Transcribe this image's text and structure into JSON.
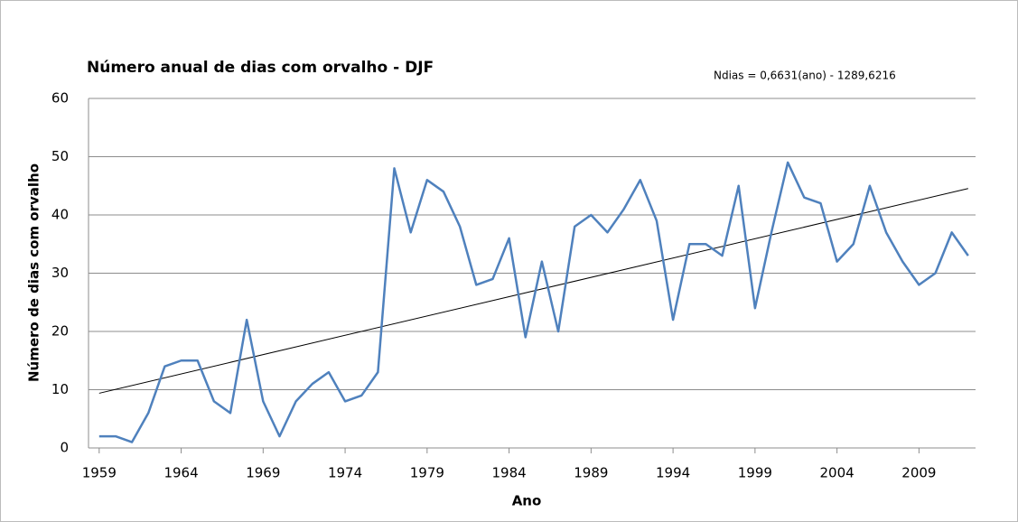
{
  "chart_data": {
    "type": "line",
    "title": "Número anual de dias com orvalho - DJF",
    "x_label": "Ano",
    "y_label": "Número de dias com orvalho",
    "x": [
      1959,
      1960,
      1961,
      1962,
      1963,
      1964,
      1965,
      1966,
      1967,
      1968,
      1969,
      1970,
      1971,
      1972,
      1973,
      1974,
      1975,
      1976,
      1977,
      1978,
      1979,
      1980,
      1981,
      1982,
      1983,
      1984,
      1985,
      1986,
      1987,
      1988,
      1989,
      1990,
      1991,
      1992,
      1993,
      1994,
      1995,
      1996,
      1997,
      1998,
      1999,
      2000,
      2001,
      2002,
      2003,
      2004,
      2005,
      2006,
      2007,
      2008,
      2009,
      2010,
      2011,
      2012
    ],
    "series": [
      {
        "color": "#4f81bd",
        "values": [
          2,
          2,
          1,
          6,
          14,
          15,
          15,
          8,
          6,
          22,
          8,
          2,
          8,
          11,
          13,
          8,
          9,
          13,
          48,
          37,
          46,
          44,
          38,
          28,
          29,
          36,
          19,
          32,
          20,
          38,
          40,
          37,
          41,
          46,
          39,
          22,
          35,
          35,
          33,
          45,
          24,
          37,
          49,
          43,
          42,
          32,
          35,
          45,
          37,
          32,
          28,
          30,
          37,
          33
        ]
      }
    ],
    "trendline": {
      "label": "Ndias = 0,6631(ano) - 1289,6216",
      "slope": 0.6631,
      "intercept": -1289.6216,
      "color": "#000000"
    },
    "xlim": [
      1958.35,
      2012.45
    ],
    "xticks": [
      1959,
      1964,
      1969,
      1974,
      1979,
      1984,
      1989,
      1994,
      1999,
      2004,
      2009
    ],
    "ylim": [
      0,
      60
    ],
    "yticks": [
      0,
      10,
      20,
      30,
      40,
      50,
      60
    ],
    "grid": true
  }
}
